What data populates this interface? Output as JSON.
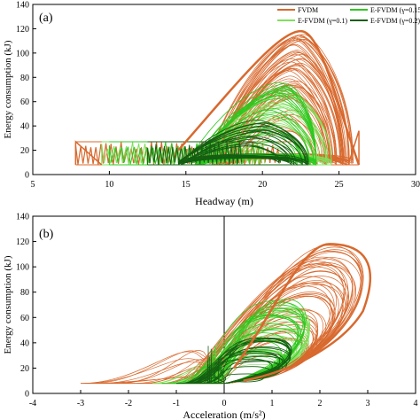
{
  "chart_data": [
    {
      "panel_label": "(a)",
      "type": "line",
      "xlabel": "Headway (m)",
      "ylabel": "Energy consumption (kJ)",
      "xlim": [
        5,
        30
      ],
      "ylim": [
        0,
        140
      ],
      "xticks": [
        5,
        10,
        15,
        20,
        25,
        30
      ],
      "yticks": [
        0,
        20,
        40,
        60,
        80,
        100,
        120,
        140
      ],
      "legend": {
        "placement": "top-right",
        "entries": [
          "FVDM",
          "E-FVDM (γ=0.1)",
          "E-FVDM (γ=0.15)",
          "E-FVDM (γ=0.2)"
        ]
      },
      "series": [
        {
          "name": "FVDM",
          "color": "#d8692e",
          "x_min": 7.8,
          "x_max": 26.3,
          "y_min": 8,
          "y_peak": 118,
          "x_at_peak": 22.5,
          "low_band": [
            8,
            27
          ]
        },
        {
          "name": "E-FVDM (γ=0.1)",
          "color": "#7fe05a",
          "x_min": 9.5,
          "x_max": 24.5,
          "y_min": 8,
          "y_peak": 70,
          "x_at_peak": 21.5,
          "low_band": [
            8,
            27
          ]
        },
        {
          "name": "E-FVDM (γ=0.15)",
          "color": "#2fc81f",
          "x_min": 10.0,
          "x_max": 23.5,
          "y_min": 8,
          "y_peak": 76,
          "x_at_peak": 21.3,
          "low_band": [
            8,
            27
          ]
        },
        {
          "name": "E-FVDM (γ=0.2)",
          "color": "#155f12",
          "x_min": 12.5,
          "x_max": 23.0,
          "y_min": 8,
          "y_peak": 45,
          "x_at_peak": 20.0,
          "low_band": [
            8,
            27
          ]
        }
      ]
    },
    {
      "panel_label": "(b)",
      "type": "line",
      "xlabel": "Acceleration (m/s²)",
      "ylabel": "Energy consumption (kJ)",
      "xlim": [
        -4,
        4
      ],
      "ylim": [
        0,
        140
      ],
      "xticks": [
        -4,
        -3,
        -2,
        -1,
        0,
        1,
        2,
        3,
        4
      ],
      "yticks": [
        0,
        20,
        40,
        60,
        80,
        100,
        120,
        140
      ],
      "series": [
        {
          "name": "FVDM",
          "color": "#d8692e",
          "x_min": -3.0,
          "x_max": 3.2,
          "y_min": 8,
          "y_peak": 118,
          "x_at_peak": 2.2
        },
        {
          "name": "E-FVDM (γ=0.1)",
          "color": "#7fe05a",
          "x_min": -1.5,
          "x_max": 2.0,
          "y_min": 8,
          "y_peak": 70,
          "x_at_peak": 1.3
        },
        {
          "name": "E-FVDM (γ=0.15)",
          "color": "#2fc81f",
          "x_min": -1.3,
          "x_max": 1.9,
          "y_min": 8,
          "y_peak": 76,
          "x_at_peak": 1.2
        },
        {
          "name": "E-FVDM (γ=0.2)",
          "color": "#155f12",
          "x_min": -1.0,
          "x_max": 1.6,
          "y_min": 8,
          "y_peak": 45,
          "x_at_peak": 0.9
        }
      ]
    }
  ]
}
